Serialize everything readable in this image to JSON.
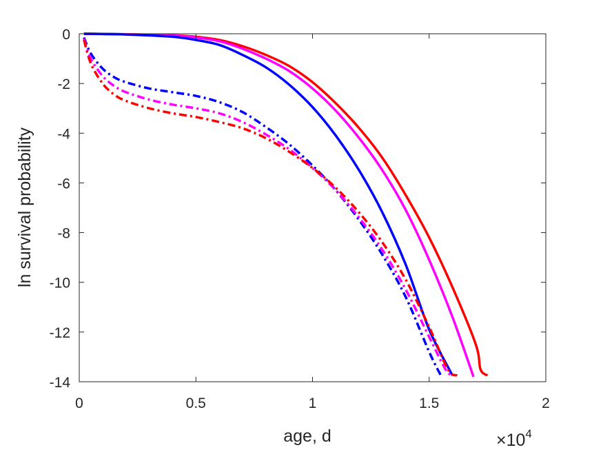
{
  "chart_data": {
    "type": "line",
    "title": "",
    "xlabel": "age, d",
    "ylabel": "ln survival probability",
    "x_exponent_label": {
      "base": "×10",
      "power": "4"
    },
    "x_scale_factor": 10000,
    "xlim": [
      0,
      2
    ],
    "ylim": [
      -14,
      0
    ],
    "xticks": [
      "0",
      "0.5",
      "1",
      "1.5",
      "2"
    ],
    "yticks": [
      "0",
      "-2",
      "-4",
      "-6",
      "-8",
      "-10",
      "-12",
      "-14"
    ],
    "grid": false,
    "legend": "none",
    "series": [
      {
        "color": "#ff0000",
        "style": "solid",
        "x": [
          0.02,
          0.2,
          0.4,
          0.5,
          0.6,
          0.7,
          0.8,
          0.9,
          1.0,
          1.1,
          1.2,
          1.3,
          1.4,
          1.5,
          1.6,
          1.7,
          1.72,
          1.75
        ],
        "y": [
          0,
          -0.02,
          -0.06,
          -0.12,
          -0.25,
          -0.5,
          -0.85,
          -1.3,
          -1.95,
          -2.8,
          -3.8,
          -5.0,
          -6.5,
          -8.2,
          -10.2,
          -12.5,
          -13.5,
          -13.75
        ]
      },
      {
        "color": "#ff00ff",
        "style": "solid",
        "x": [
          0.02,
          0.2,
          0.4,
          0.5,
          0.6,
          0.7,
          0.8,
          0.9,
          1.0,
          1.1,
          1.2,
          1.3,
          1.4,
          1.5,
          1.6,
          1.69
        ],
        "y": [
          0,
          -0.02,
          -0.07,
          -0.15,
          -0.3,
          -0.6,
          -1.0,
          -1.5,
          -2.2,
          -3.1,
          -4.2,
          -5.5,
          -7.1,
          -9.1,
          -11.4,
          -13.8
        ]
      },
      {
        "color": "#0000ff",
        "style": "solid",
        "x": [
          0.02,
          0.2,
          0.4,
          0.5,
          0.6,
          0.7,
          0.8,
          0.9,
          1.0,
          1.1,
          1.2,
          1.3,
          1.4,
          1.5,
          1.6
        ],
        "y": [
          0,
          -0.03,
          -0.12,
          -0.25,
          -0.45,
          -0.85,
          -1.35,
          -2.05,
          -2.95,
          -4.1,
          -5.5,
          -7.2,
          -9.3,
          -11.9,
          -13.75
        ]
      },
      {
        "color": "#0000ff",
        "style": "dashdot",
        "x": [
          0.02,
          0.05,
          0.1,
          0.15,
          0.2,
          0.3,
          0.4,
          0.5,
          0.6,
          0.7,
          0.8,
          0.9,
          1.0,
          1.1,
          1.2,
          1.3,
          1.4,
          1.5,
          1.55
        ],
        "y": [
          -0.15,
          -0.8,
          -1.4,
          -1.75,
          -1.95,
          -2.2,
          -2.35,
          -2.5,
          -2.75,
          -3.15,
          -3.75,
          -4.45,
          -5.3,
          -6.3,
          -7.5,
          -8.9,
          -10.6,
          -12.8,
          -13.75
        ]
      },
      {
        "color": "#ff00ff",
        "style": "dashdot",
        "x": [
          0.02,
          0.05,
          0.1,
          0.15,
          0.2,
          0.3,
          0.4,
          0.5,
          0.6,
          0.7,
          0.8,
          0.9,
          1.0,
          1.1,
          1.2,
          1.3,
          1.4,
          1.5,
          1.57,
          1.6
        ],
        "y": [
          -0.2,
          -1.0,
          -1.7,
          -2.1,
          -2.35,
          -2.65,
          -2.85,
          -3.0,
          -3.2,
          -3.55,
          -4.05,
          -4.65,
          -5.4,
          -6.3,
          -7.4,
          -8.7,
          -10.3,
          -12.2,
          -13.5,
          -13.75
        ]
      },
      {
        "color": "#ff0000",
        "style": "dashdot",
        "x": [
          0.02,
          0.05,
          0.1,
          0.15,
          0.2,
          0.3,
          0.4,
          0.5,
          0.6,
          0.7,
          0.8,
          0.9,
          1.0,
          1.1,
          1.2,
          1.3,
          1.4,
          1.5,
          1.58,
          1.62
        ],
        "y": [
          -0.25,
          -1.2,
          -2.0,
          -2.45,
          -2.7,
          -3.0,
          -3.2,
          -3.35,
          -3.55,
          -3.8,
          -4.2,
          -4.75,
          -5.4,
          -6.2,
          -7.2,
          -8.4,
          -9.9,
          -11.8,
          -13.5,
          -13.75
        ]
      }
    ]
  }
}
